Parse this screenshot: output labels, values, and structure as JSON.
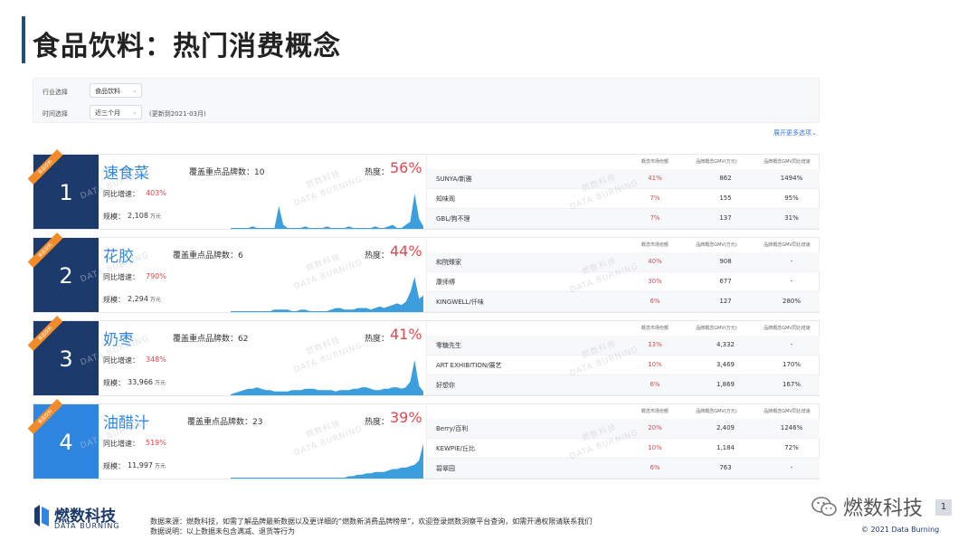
{
  "page": {
    "title": "食品饮料：热门消费概念"
  },
  "filters": {
    "industry_label": "行业选择",
    "industry_value": "食品饮料",
    "time_label": "时间选择",
    "time_value": "近三个月",
    "time_note": "(更新到2021-03月)",
    "expand_label": "展开更多选项"
  },
  "ribbon_text": "食品饮料",
  "labels": {
    "coverage": "覆盖重点品牌数：",
    "heat": "热度：",
    "growth": "同比增速：",
    "scale": "规模：",
    "scale_unit": "万元"
  },
  "table_headers": {
    "share": "概念市场份额",
    "gmv": "品牌概念GMV(万元)",
    "yoy": "品牌概念GMV同比增速"
  },
  "watermark": {
    "cn": "燃数科技",
    "en": "DATA BURNING"
  },
  "concepts": [
    {
      "rank": "1",
      "name": "速食菜",
      "brand_count": "10",
      "heat": "56%",
      "growth": "403%",
      "scale": "2,108",
      "trend": [
        0,
        0,
        0,
        0,
        0,
        1,
        0,
        0,
        0,
        0,
        0,
        14,
        2,
        0,
        0,
        0,
        0,
        1,
        0,
        0,
        0,
        0,
        1,
        0,
        0,
        0,
        0,
        1,
        0,
        0,
        0,
        0,
        0,
        1,
        0,
        0,
        1,
        2,
        0,
        0,
        2,
        4,
        22,
        6,
        1
      ],
      "brands": [
        {
          "brand": "SUNYA/新雅",
          "share": "41%",
          "gmv": "862",
          "yoy": "1494%"
        },
        {
          "brand": "知味观",
          "share": "7%",
          "gmv": "155",
          "yoy": "95%"
        },
        {
          "brand": "GBL/狗不理",
          "share": "7%",
          "gmv": "137",
          "yoy": "31%"
        }
      ]
    },
    {
      "rank": "2",
      "name": "花胶",
      "brand_count": "6",
      "heat": "44%",
      "growth": "790%",
      "scale": "2,294",
      "trend": [
        0,
        0,
        0,
        0,
        0,
        0,
        0,
        0,
        0,
        0,
        1,
        1,
        1,
        1,
        0,
        0,
        1,
        1,
        0,
        0,
        0,
        0,
        0,
        1,
        2,
        2,
        1,
        1,
        1,
        2,
        2,
        2,
        1,
        2,
        3,
        2,
        3,
        4,
        5,
        4,
        6,
        12,
        22,
        8,
        10
      ],
      "brands": [
        {
          "brand": "和院臻家",
          "share": "40%",
          "gmv": "908",
          "yoy": "-"
        },
        {
          "brand": "康师傅",
          "share": "30%",
          "gmv": "677",
          "yoy": "-"
        },
        {
          "brand": "KINGWELL/仟味",
          "share": "6%",
          "gmv": "127",
          "yoy": "280%"
        }
      ]
    },
    {
      "rank": "3",
      "name": "奶枣",
      "brand_count": "62",
      "heat": "41%",
      "growth": "348%",
      "scale": "33,966",
      "trend": [
        0,
        1,
        2,
        3,
        4,
        4,
        5,
        4,
        3,
        3,
        2,
        2,
        2,
        2,
        3,
        3,
        3,
        4,
        4,
        4,
        3,
        3,
        3,
        3,
        2,
        3,
        3,
        3,
        4,
        4,
        5,
        5,
        4,
        3,
        3,
        4,
        4,
        5,
        5,
        4,
        5,
        9,
        24,
        6,
        2
      ],
      "brands": [
        {
          "brand": "零糖先生",
          "share": "13%",
          "gmv": "4,332",
          "yoy": "-"
        },
        {
          "brand": "ART EXHIBITION/展艺",
          "share": "10%",
          "gmv": "3,469",
          "yoy": "170%"
        },
        {
          "brand": "好想你",
          "share": "6%",
          "gmv": "1,869",
          "yoy": "167%"
        }
      ]
    },
    {
      "rank": "4",
      "name": "油醋汁",
      "brand_count": "23",
      "heat": "39%",
      "growth": "519%",
      "scale": "11,997",
      "trend": [
        0,
        0,
        0,
        0,
        0,
        0,
        0,
        0,
        0,
        0,
        0,
        0,
        0,
        0,
        0,
        0,
        0,
        0,
        0,
        0,
        0,
        0,
        0,
        0,
        0,
        0,
        0,
        1,
        1,
        2,
        2,
        3,
        3,
        4,
        4,
        4,
        5,
        6,
        6,
        7,
        7,
        8,
        9,
        12,
        24
      ],
      "brands": [
        {
          "brand": "Berry/百利",
          "share": "20%",
          "gmv": "2,409",
          "yoy": "1246%"
        },
        {
          "brand": "KEWPIE/丘比",
          "share": "10%",
          "gmv": "1,184",
          "yoy": "72%"
        },
        {
          "brand": "碧翠园",
          "share": "6%",
          "gmv": "763",
          "yoy": "-"
        }
      ]
    }
  ],
  "footer": {
    "brand_cn": "燃数科技",
    "brand_en": "DATA BURNING",
    "source": "数据来源：燃数科技，如需了解品牌最新数据以及更详细的“燃数新消费品牌榜单”，欢迎登录燃数洞察平台查询，如需开通权限请联系我们",
    "note": "数据说明：以上数据未包含满减、退货等行为",
    "wechat_name": "燃数科技",
    "copyright": "© 2021 Data Burning",
    "corner_badge": "1"
  },
  "colors": {
    "navy": "#1c3a6b",
    "blue": "#2f86e0",
    "orange": "#f28c28",
    "red": "#e0464d",
    "chart_fill": "#3a9fdc"
  }
}
